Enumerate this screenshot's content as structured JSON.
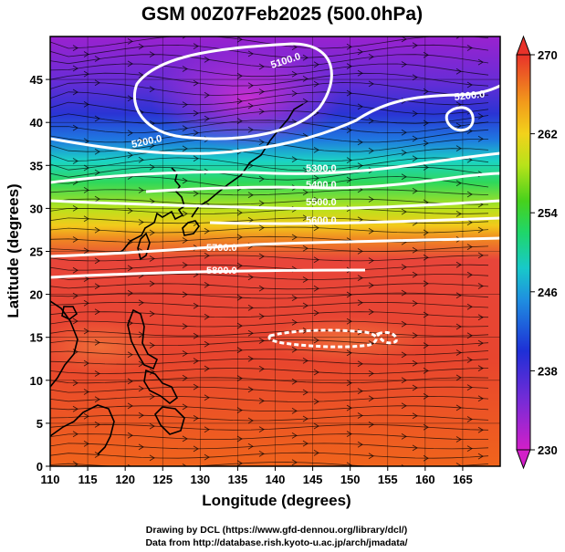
{
  "title": "GSM 00Z07Feb2025 (500.0hPa)",
  "x_axis_label": "Longitude (degrees)",
  "y_axis_label": "Latitude  (degrees)",
  "credits": {
    "line1": "Drawing by DCL (https://www.gfd-dennou.org/library/dcl/)",
    "line2": "Data from http://database.rish.kyoto-u.ac.jp/arch/jmadata/"
  },
  "x_ticks": [
    "110",
    "115",
    "120",
    "125",
    "130",
    "135",
    "140",
    "145",
    "150",
    "155",
    "160",
    "165"
  ],
  "y_ticks": [
    "0",
    "5",
    "10",
    "15",
    "20",
    "25",
    "30",
    "35",
    "40",
    "45"
  ],
  "colorbar_ticks": [
    "230",
    "238",
    "246",
    "254",
    "262",
    "270"
  ],
  "contour_labels": [
    "5100.0",
    "5200.0",
    "5300.0",
    "5400.0",
    "5500.0",
    "5600.0",
    "5700.0",
    "5800.0",
    "5200.0"
  ],
  "colors": {
    "scale": [
      "#d21fc8",
      "#7a2bd6",
      "#1e2fd6",
      "#1f8fe0",
      "#18c9c9",
      "#1fd66a",
      "#47d11c",
      "#b7e31a",
      "#f2d21b",
      "#f29a1b",
      "#ef5a24",
      "#e8322a"
    ],
    "contour": "#ffffff",
    "coast": "#000000"
  }
}
